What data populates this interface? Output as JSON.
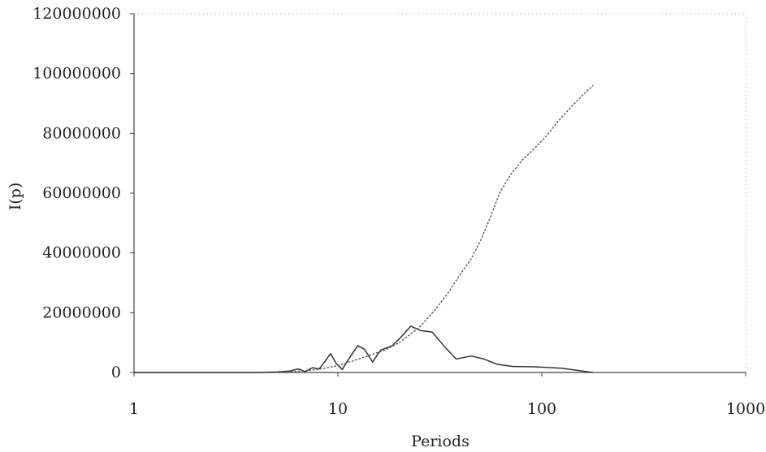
{
  "chart_data": {
    "type": "line",
    "title": "",
    "xlabel": "Periods",
    "ylabel": "I(p)",
    "x_scale": "log",
    "xlim": [
      1,
      1000
    ],
    "ylim": [
      0,
      120000000
    ],
    "x_ticks": [
      1,
      10,
      100,
      1000
    ],
    "x_tick_labels": [
      "1",
      "10",
      "100",
      "1000"
    ],
    "y_ticks": [
      0,
      20000000,
      40000000,
      60000000,
      80000000,
      100000000,
      120000000
    ],
    "y_tick_labels": [
      "0",
      "20000000",
      "40000000",
      "60000000",
      "80000000",
      "100000000",
      "120000000"
    ],
    "grid": false,
    "legend": "none",
    "colors": {
      "solid": "#333333",
      "dotted": "#555555",
      "axis": "#444444"
    },
    "series": [
      {
        "style": "solid",
        "points": [
          [
            1,
            0
          ],
          [
            2,
            0
          ],
          [
            3,
            0
          ],
          [
            4,
            0
          ],
          [
            5,
            150000
          ],
          [
            5.8,
            500000
          ],
          [
            6.4,
            1200000
          ],
          [
            6.9,
            300000
          ],
          [
            7.5,
            1600000
          ],
          [
            8.1,
            1200000
          ],
          [
            8.6,
            3500000
          ],
          [
            9.2,
            6300000
          ],
          [
            9.8,
            3000000
          ],
          [
            10.5,
            1000000
          ],
          [
            11.3,
            4500000
          ],
          [
            12.5,
            9000000
          ],
          [
            13.5,
            7800000
          ],
          [
            14.8,
            3500000
          ],
          [
            16.2,
            7500000
          ],
          [
            18.5,
            9000000
          ],
          [
            20.5,
            12000000
          ],
          [
            22.8,
            15500000
          ],
          [
            25.5,
            14000000
          ],
          [
            29,
            13500000
          ],
          [
            33.5,
            8500000
          ],
          [
            38,
            4500000
          ],
          [
            45,
            5500000
          ],
          [
            52,
            4500000
          ],
          [
            60,
            2800000
          ],
          [
            72,
            2000000
          ],
          [
            92,
            1900000
          ],
          [
            125,
            1400000
          ],
          [
            178,
            0
          ]
        ]
      },
      {
        "style": "dotted",
        "points": [
          [
            5,
            100000
          ],
          [
            6,
            300000
          ],
          [
            7,
            600000
          ],
          [
            8.5,
            1300000
          ],
          [
            10,
            2300000
          ],
          [
            12,
            4000000
          ],
          [
            14,
            5500000
          ],
          [
            17,
            7500000
          ],
          [
            20,
            10000000
          ],
          [
            25,
            15000000
          ],
          [
            30,
            21000000
          ],
          [
            35,
            27000000
          ],
          [
            40,
            33000000
          ],
          [
            45,
            38000000
          ],
          [
            50,
            44000000
          ],
          [
            56,
            52000000
          ],
          [
            62,
            60000000
          ],
          [
            70,
            66000000
          ],
          [
            80,
            71000000
          ],
          [
            92,
            75000000
          ],
          [
            105,
            79000000
          ],
          [
            120,
            84000000
          ],
          [
            140,
            89000000
          ],
          [
            160,
            93000000
          ],
          [
            178,
            96000000
          ]
        ]
      }
    ]
  }
}
